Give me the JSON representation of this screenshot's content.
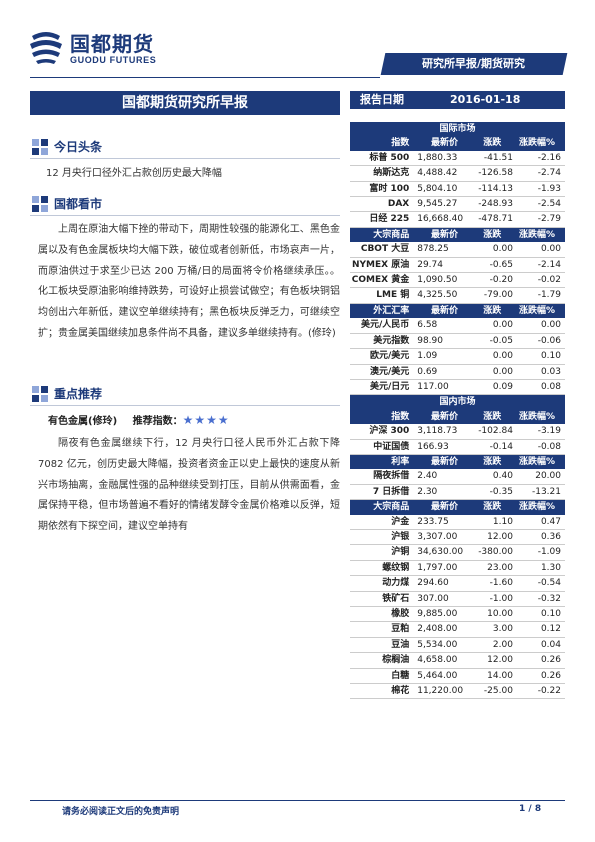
{
  "header": {
    "logo_cn": "国都期货",
    "logo_en": "GUODU FUTURES",
    "report_type": "研究所早报/期货研究",
    "main_title": "国都期货研究所早报",
    "date_label": "报告日期",
    "date_value": "2016-01-18"
  },
  "sections": {
    "headline_title": "今日头条",
    "headline_text": "12 月央行口径外汇占款创历史最大降幅",
    "market_title": "国都看市",
    "market_text": "上周在原油大幅下挫的带动下，周期性较强的能源化工、黑色金属以及有色金属板块均大幅下跌，破位或者创新低，市场哀声一片，而原油供过于求至少已达 200 万桶/日的局面将令价格继续承压。。化工板块受原油影响维持跌势，可设好止损尝试做空；有色板块铜铝均创出六年新低，建议空单继续持有；黑色板块反弹乏力，可继续空扩；贵金属美国继续加息条件尚不具备，建议多单继续持有。(修玲)",
    "recommend_title": "重点推荐",
    "recommend_sub": "有色金属(修玲)",
    "recommend_index_label": "推荐指数：",
    "recommend_stars": "★★★★",
    "recommend_text": "隔夜有色金属继续下行，12 月央行口径人民币外汇占款下降 7082 亿元，创历史最大降幅，投资者资金正以史上最快的速度从新兴市场抽离，金融属性强的品种继续受到打压，目前从供需面看，金属保持平稳，但市场普遍不看好的情绪发酵令金属价格难以反弹，短期依然有下探空间，建议空单持有"
  },
  "table": {
    "col_headers": [
      "指数",
      "最新价",
      "涨跌",
      "涨跌幅%"
    ],
    "intl_title": "国际市场",
    "indices": [
      {
        "name": "标普 500",
        "price": "1,880.33",
        "chg": "-41.51",
        "pct": "-2.16"
      },
      {
        "name": "纳斯达克",
        "price": "4,488.42",
        "chg": "-126.58",
        "pct": "-2.74"
      },
      {
        "name": "富时 100",
        "price": "5,804.10",
        "chg": "-114.13",
        "pct": "-1.93"
      },
      {
        "name": "DAX",
        "price": "9,545.27",
        "chg": "-248.93",
        "pct": "-2.54"
      },
      {
        "name": "日经 225",
        "price": "16,668.40",
        "chg": "-478.71",
        "pct": "-2.79"
      }
    ],
    "commodity_headers": [
      "大宗商品",
      "最新价",
      "涨跌",
      "涨跌幅%"
    ],
    "commodities": [
      {
        "name": "CBOT 大豆",
        "price": "878.25",
        "chg": "0.00",
        "pct": "0.00"
      },
      {
        "name": "NYMEX 原油",
        "price": "29.74",
        "chg": "-0.65",
        "pct": "-2.14"
      },
      {
        "name": "COMEX 黄金",
        "price": "1,090.50",
        "chg": "-0.20",
        "pct": "-0.02"
      },
      {
        "name": "LME 铜",
        "price": "4,325.50",
        "chg": "-79.00",
        "pct": "-1.79"
      }
    ],
    "fx_headers": [
      "外汇汇率",
      "最新价",
      "涨跌",
      "涨跌幅%"
    ],
    "fx": [
      {
        "name": "美元/人民币",
        "price": "6.58",
        "chg": "0.00",
        "pct": "0.00"
      },
      {
        "name": "美元指数",
        "price": "98.90",
        "chg": "-0.05",
        "pct": "-0.06"
      },
      {
        "name": "欧元/美元",
        "price": "1.09",
        "chg": "0.00",
        "pct": "0.10"
      },
      {
        "name": "澳元/美元",
        "price": "0.69",
        "chg": "0.00",
        "pct": "0.03"
      },
      {
        "name": "美元/日元",
        "price": "117.00",
        "chg": "0.09",
        "pct": "0.08"
      }
    ],
    "domestic_title": "国内市场",
    "domestic_indices": [
      {
        "name": "沪深 300",
        "price": "3,118.73",
        "chg": "-102.84",
        "pct": "-3.19"
      },
      {
        "name": "中证国债",
        "price": "166.93",
        "chg": "-0.14",
        "pct": "-0.08"
      }
    ],
    "rate_headers": [
      "利率",
      "最新价",
      "涨跌",
      "涨跌幅%"
    ],
    "rates": [
      {
        "name": "隔夜拆借",
        "price": "2.40",
        "chg": "0.40",
        "pct": "20.00"
      },
      {
        "name": "7 日拆借",
        "price": "2.30",
        "chg": "-0.35",
        "pct": "-13.21"
      }
    ],
    "dom_commodity_headers": [
      "大宗商品",
      "最新价",
      "涨跌",
      "涨跌幅%"
    ],
    "dom_commodities": [
      {
        "name": "沪金",
        "price": "233.75",
        "chg": "1.10",
        "pct": "0.47"
      },
      {
        "name": "沪银",
        "price": "3,307.00",
        "chg": "12.00",
        "pct": "0.36"
      },
      {
        "name": "沪铜",
        "price": "34,630.00",
        "chg": "-380.00",
        "pct": "-1.09"
      },
      {
        "name": "螺纹钢",
        "price": "1,797.00",
        "chg": "23.00",
        "pct": "1.30"
      },
      {
        "name": "动力煤",
        "price": "294.60",
        "chg": "-1.60",
        "pct": "-0.54"
      },
      {
        "name": "铁矿石",
        "price": "307.00",
        "chg": "-1.00",
        "pct": "-0.32"
      },
      {
        "name": "橡胶",
        "price": "9,885.00",
        "chg": "10.00",
        "pct": "0.10"
      },
      {
        "name": "豆粕",
        "price": "2,408.00",
        "chg": "3.00",
        "pct": "0.12"
      },
      {
        "name": "豆油",
        "price": "5,534.00",
        "chg": "2.00",
        "pct": "0.04"
      },
      {
        "name": "棕榈油",
        "price": "4,658.00",
        "chg": "12.00",
        "pct": "0.26"
      },
      {
        "name": "白糖",
        "price": "5,464.00",
        "chg": "14.00",
        "pct": "0.26"
      },
      {
        "name": "棉花",
        "price": "11,220.00",
        "chg": "-25.00",
        "pct": "-0.22"
      }
    ]
  },
  "footer": {
    "disclaimer": "请务必阅读正文后的免责声明",
    "page": "1 / 8"
  },
  "colors": {
    "brand": "#1d3a7a",
    "icon_light": "#8fa6d9"
  }
}
